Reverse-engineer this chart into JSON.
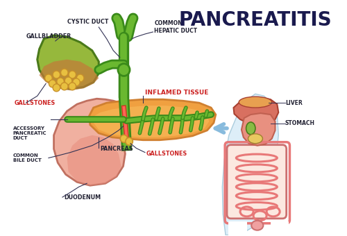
{
  "title": "PANCREATITIS",
  "title_color": "#1a1a4e",
  "title_fontsize": 20,
  "background_color": "#ffffff",
  "labels": {
    "cystic_duct": "CYSTIC DUCT",
    "gallbladder": "GALLBLADDER",
    "common_hepatic_duct": "COMMON\nHEPATIC DUCT",
    "gallstones_left": "GALLSTONES",
    "pancreas": "PANCREAS",
    "inflamed_tissue": "INFLAMED TISSUE",
    "accessory_pancreatic_duct": "ACCESSORY\nPANCREATIC\nDUCT",
    "common_bile_duct": "COMMON\nBILE DUCT",
    "duodenum": "DUODENUM",
    "gallstones_right": "GALLSTONES",
    "liver": "LIVER",
    "stomach": "STOMACH"
  },
  "label_color_red": "#cc2222",
  "label_color_black": "#222233",
  "gb_fill_top": "#8aaa44",
  "gb_fill_bottom": "#c07840",
  "gb_edge": "#4a7a1a",
  "gallstone_color": "#e8c040",
  "gallstone_edge": "#c8902a",
  "inflamed_fill": "#f0a040",
  "inflamed_edge": "#d08030",
  "duct_outer": "#3a8a1a",
  "duct_inner": "#6ab830",
  "duodenum_fill": "#f0b0a0",
  "duodenum_fill2": "#e89080",
  "duodenum_edge": "#c07060",
  "body_bg": "#ddeef8",
  "body_edge": "#aaccdd",
  "liver_fill": "#d87060",
  "liver_edge": "#a84030",
  "liver_top": "#e8a050",
  "stomach_fill": "#e89080",
  "stomach_edge": "#c06050",
  "gb_small_fill": "#88bb44",
  "gb_small_edge": "#4a7a1a",
  "intestine_fill": "#f0a0a0",
  "intestine_edge": "#cc7070",
  "intestine_loops": "#e87878",
  "white_arrow": "#ffffff",
  "blue_arrow": "#88bbdd",
  "line_color": "#333355"
}
